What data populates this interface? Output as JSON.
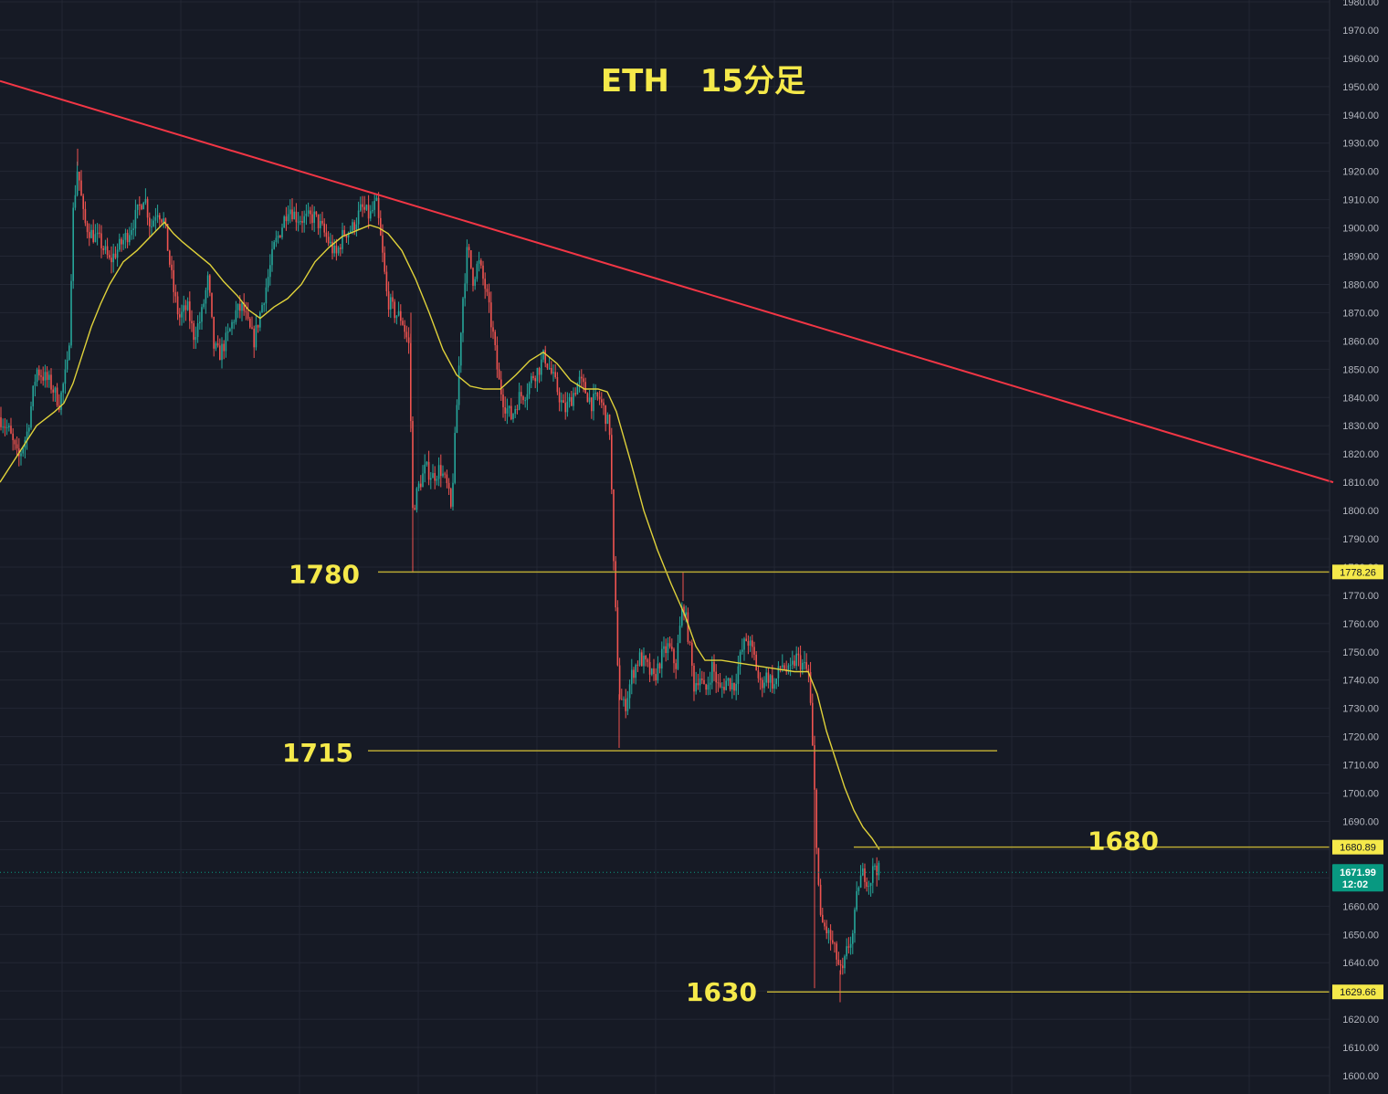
{
  "chart_data": {
    "type": "candlestick",
    "title": "ETH　15分足",
    "ylim": [
      1600,
      1980
    ],
    "y_ticks": [
      1600,
      1610,
      1620,
      1630,
      1640,
      1650,
      1660,
      1670,
      1680,
      1690,
      1700,
      1710,
      1720,
      1730,
      1740,
      1750,
      1760,
      1770,
      1780,
      1790,
      1800,
      1810,
      1820,
      1830,
      1840,
      1850,
      1860,
      1870,
      1880,
      1890,
      1900,
      1910,
      1920,
      1930,
      1940,
      1950,
      1960,
      1970,
      1980
    ],
    "grid": true,
    "price_path": [
      [
        0,
        1833
      ],
      [
        10,
        1828
      ],
      [
        20,
        1818
      ],
      [
        30,
        1828
      ],
      [
        40,
        1850
      ],
      [
        55,
        1845
      ],
      [
        65,
        1838
      ],
      [
        75,
        1853
      ],
      [
        80,
        1905
      ],
      [
        85,
        1922
      ],
      [
        92,
        1902
      ],
      [
        100,
        1898
      ],
      [
        110,
        1895
      ],
      [
        120,
        1888
      ],
      [
        130,
        1893
      ],
      [
        140,
        1898
      ],
      [
        150,
        1905
      ],
      [
        158,
        1912
      ],
      [
        165,
        1900
      ],
      [
        172,
        1907
      ],
      [
        180,
        1902
      ],
      [
        186,
        1887
      ],
      [
        190,
        1878
      ],
      [
        196,
        1868
      ],
      [
        205,
        1872
      ],
      [
        212,
        1862
      ],
      [
        220,
        1868
      ],
      [
        228,
        1882
      ],
      [
        234,
        1858
      ],
      [
        240,
        1855
      ],
      [
        250,
        1862
      ],
      [
        258,
        1870
      ],
      [
        266,
        1872
      ],
      [
        272,
        1865
      ],
      [
        278,
        1860
      ],
      [
        285,
        1870
      ],
      [
        292,
        1880
      ],
      [
        300,
        1893
      ],
      [
        308,
        1900
      ],
      [
        316,
        1908
      ],
      [
        324,
        1904
      ],
      [
        334,
        1903
      ],
      [
        344,
        1904
      ],
      [
        352,
        1900
      ],
      [
        360,
        1895
      ],
      [
        368,
        1890
      ],
      [
        376,
        1898
      ],
      [
        386,
        1900
      ],
      [
        396,
        1907
      ],
      [
        405,
        1904
      ],
      [
        412,
        1909
      ],
      [
        418,
        1893
      ],
      [
        424,
        1875
      ],
      [
        432,
        1870
      ],
      [
        440,
        1868
      ],
      [
        448,
        1858
      ],
      [
        452,
        1800
      ],
      [
        458,
        1808
      ],
      [
        466,
        1815
      ],
      [
        474,
        1812
      ],
      [
        482,
        1815
      ],
      [
        490,
        1808
      ],
      [
        494,
        1800
      ],
      [
        500,
        1835
      ],
      [
        506,
        1872
      ],
      [
        512,
        1893
      ],
      [
        518,
        1882
      ],
      [
        524,
        1888
      ],
      [
        532,
        1878
      ],
      [
        540,
        1862
      ],
      [
        546,
        1846
      ],
      [
        552,
        1838
      ],
      [
        560,
        1833
      ],
      [
        568,
        1840
      ],
      [
        576,
        1842
      ],
      [
        584,
        1848
      ],
      [
        590,
        1850
      ],
      [
        596,
        1855
      ],
      [
        602,
        1850
      ],
      [
        610,
        1843
      ],
      [
        618,
        1835
      ],
      [
        626,
        1840
      ],
      [
        634,
        1846
      ],
      [
        640,
        1843
      ],
      [
        648,
        1838
      ],
      [
        656,
        1840
      ],
      [
        662,
        1835
      ],
      [
        668,
        1828
      ],
      [
        672,
        1780
      ],
      [
        678,
        1735
      ],
      [
        684,
        1730
      ],
      [
        692,
        1742
      ],
      [
        700,
        1748
      ],
      [
        708,
        1745
      ],
      [
        716,
        1740
      ],
      [
        724,
        1748
      ],
      [
        732,
        1752
      ],
      [
        740,
        1745
      ],
      [
        748,
        1768
      ],
      [
        754,
        1755
      ],
      [
        760,
        1738
      ],
      [
        766,
        1742
      ],
      [
        772,
        1735
      ],
      [
        780,
        1745
      ],
      [
        788,
        1736
      ],
      [
        796,
        1740
      ],
      [
        804,
        1738
      ],
      [
        812,
        1750
      ],
      [
        818,
        1755
      ],
      [
        826,
        1748
      ],
      [
        832,
        1738
      ],
      [
        840,
        1742
      ],
      [
        848,
        1738
      ],
      [
        856,
        1746
      ],
      [
        864,
        1742
      ],
      [
        872,
        1748
      ],
      [
        880,
        1745
      ],
      [
        886,
        1742
      ],
      [
        892,
        1700
      ],
      [
        898,
        1655
      ],
      [
        904,
        1652
      ],
      [
        910,
        1648
      ],
      [
        916,
        1642
      ],
      [
        922,
        1635
      ],
      [
        928,
        1645
      ],
      [
        934,
        1650
      ],
      [
        940,
        1668
      ],
      [
        946,
        1672
      ],
      [
        952,
        1668
      ],
      [
        958,
        1675
      ],
      [
        963,
        1672
      ]
    ],
    "ma_line": [
      [
        0,
        1810
      ],
      [
        20,
        1820
      ],
      [
        40,
        1830
      ],
      [
        60,
        1835
      ],
      [
        70,
        1838
      ],
      [
        80,
        1845
      ],
      [
        90,
        1855
      ],
      [
        100,
        1865
      ],
      [
        110,
        1873
      ],
      [
        120,
        1880
      ],
      [
        135,
        1888
      ],
      [
        150,
        1892
      ],
      [
        165,
        1897
      ],
      [
        180,
        1902
      ],
      [
        190,
        1898
      ],
      [
        200,
        1895
      ],
      [
        215,
        1891
      ],
      [
        230,
        1887
      ],
      [
        245,
        1881
      ],
      [
        260,
        1876
      ],
      [
        272,
        1871
      ],
      [
        285,
        1868
      ],
      [
        300,
        1872
      ],
      [
        315,
        1875
      ],
      [
        330,
        1880
      ],
      [
        345,
        1888
      ],
      [
        360,
        1893
      ],
      [
        375,
        1897
      ],
      [
        390,
        1899
      ],
      [
        405,
        1901
      ],
      [
        415,
        1900
      ],
      [
        425,
        1898
      ],
      [
        440,
        1892
      ],
      [
        455,
        1882
      ],
      [
        470,
        1870
      ],
      [
        485,
        1857
      ],
      [
        500,
        1848
      ],
      [
        515,
        1844
      ],
      [
        530,
        1843
      ],
      [
        548,
        1843
      ],
      [
        565,
        1848
      ],
      [
        580,
        1853
      ],
      [
        595,
        1856
      ],
      [
        610,
        1852
      ],
      [
        625,
        1846
      ],
      [
        640,
        1843
      ],
      [
        655,
        1843
      ],
      [
        665,
        1842
      ],
      [
        675,
        1835
      ],
      [
        690,
        1818
      ],
      [
        705,
        1800
      ],
      [
        720,
        1786
      ],
      [
        735,
        1774
      ],
      [
        750,
        1763
      ],
      [
        762,
        1752
      ],
      [
        772,
        1747
      ],
      [
        790,
        1747
      ],
      [
        810,
        1746
      ],
      [
        830,
        1745
      ],
      [
        850,
        1744
      ],
      [
        870,
        1743
      ],
      [
        885,
        1743
      ],
      [
        895,
        1735
      ],
      [
        905,
        1722
      ],
      [
        915,
        1712
      ],
      [
        925,
        1702
      ],
      [
        935,
        1694
      ],
      [
        945,
        1688
      ],
      [
        955,
        1684
      ],
      [
        963,
        1680
      ]
    ],
    "trendline": [
      [
        0,
        1952
      ],
      [
        1460,
        1810
      ]
    ],
    "levels": [
      {
        "label": "1780",
        "value": 1778.26,
        "tag": "1778.26"
      },
      {
        "label": "1715",
        "value": 1715,
        "tag": ""
      },
      {
        "label": "1680",
        "value": 1680.89,
        "tag": "1680.89"
      },
      {
        "label": "1630",
        "value": 1629.66,
        "tag": "1629.66"
      }
    ],
    "last_price": {
      "value": 1671.99,
      "price_label": "1671.99",
      "countdown": "12:02"
    },
    "colors": {
      "background": "#161a25",
      "grid": "#232734",
      "up": "#26a69a",
      "down": "#ef5350",
      "ma": "#e0d23a",
      "trend": "#f23645",
      "level": "#b8a833",
      "label": "#f5e94a",
      "last": "#089981"
    }
  }
}
